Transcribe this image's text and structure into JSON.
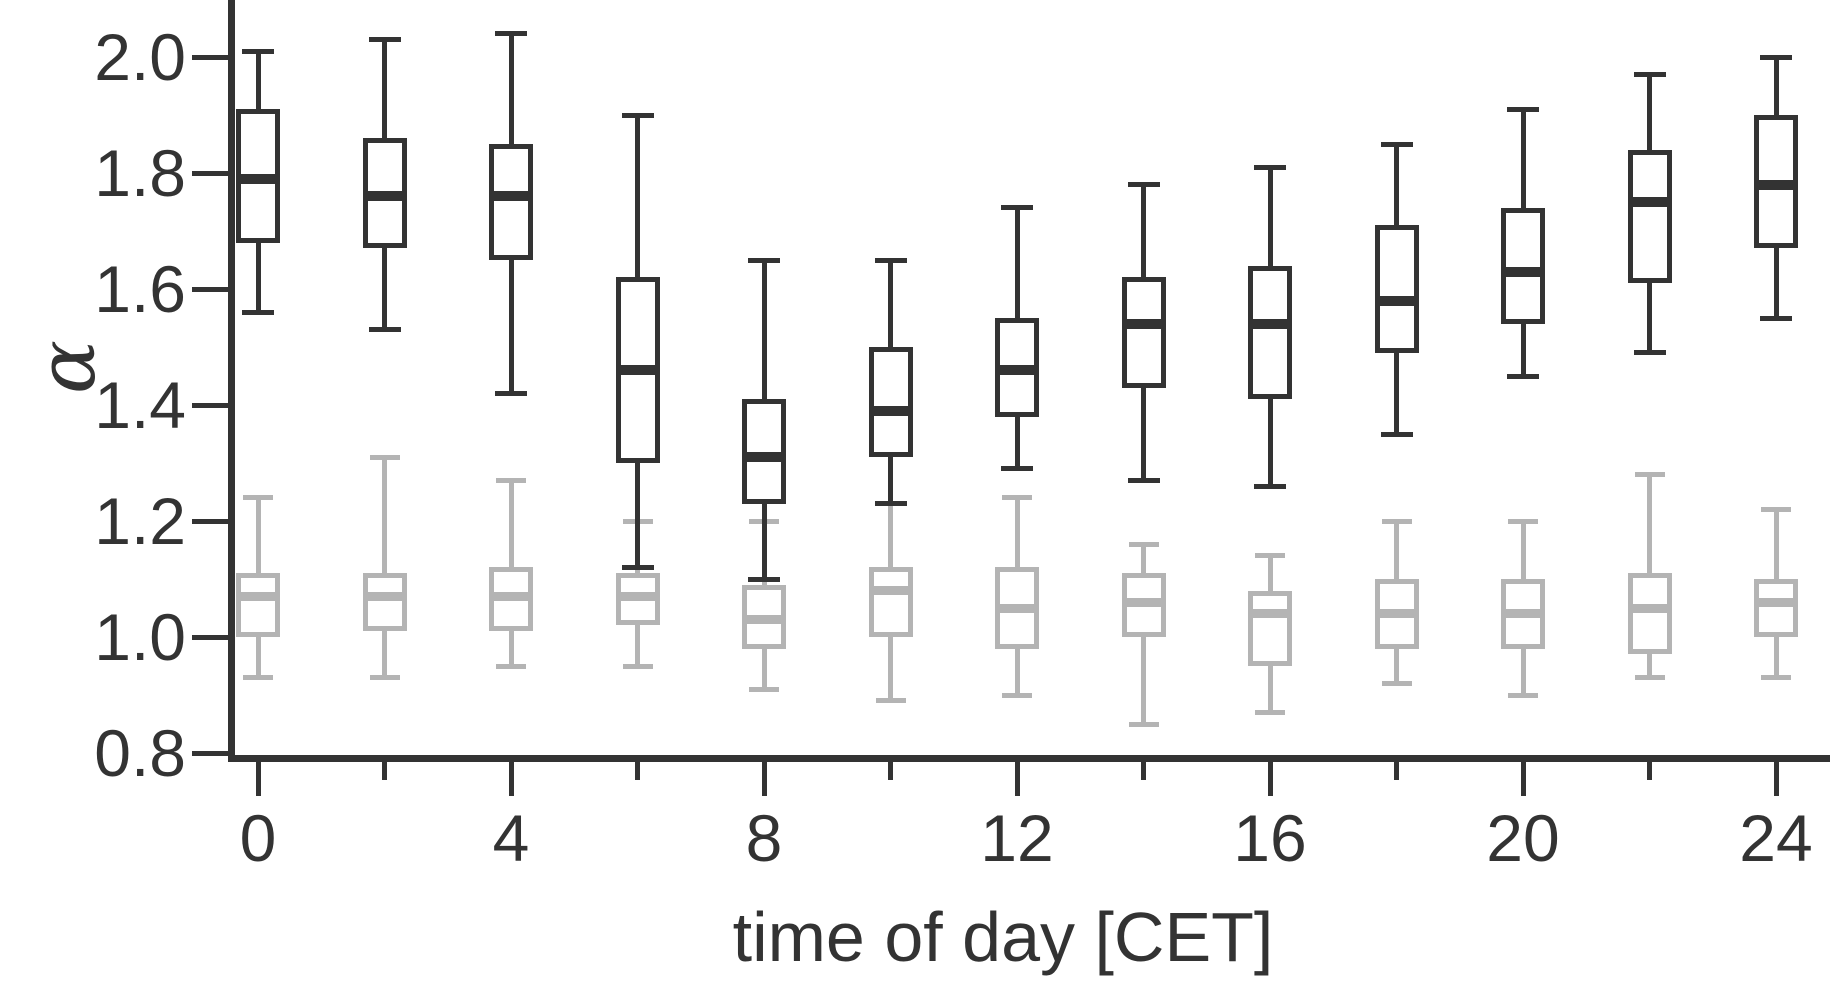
{
  "figure": {
    "xlabel": "time of day [CET]",
    "ylabel": "α"
  },
  "chart_data": {
    "type": "boxplot",
    "title": "",
    "xlabel": "time of day [CET]",
    "ylabel": "α",
    "xlim": [
      -1.2,
      25.2
    ],
    "ylim": [
      0.8,
      2.05
    ],
    "grid": false,
    "legend": "none",
    "axis_color": "#333333",
    "x_ticks": [
      {
        "label": "0",
        "value": 0
      },
      {
        "label": "4",
        "value": 4
      },
      {
        "label": "8",
        "value": 8
      },
      {
        "label": "12",
        "value": 12
      },
      {
        "label": "16",
        "value": 16
      },
      {
        "label": "20",
        "value": 20
      },
      {
        "label": "24",
        "value": 24
      }
    ],
    "x_minor_ticks": [
      2,
      6,
      10,
      14,
      18,
      22
    ],
    "y_ticks": [
      {
        "label": "0.8",
        "value": 0.8
      },
      {
        "label": "1.0",
        "value": 1.0
      },
      {
        "label": "1.2",
        "value": 1.2
      },
      {
        "label": "1.4",
        "value": 1.4
      },
      {
        "label": "1.6",
        "value": 1.6
      },
      {
        "label": "1.8",
        "value": 1.8
      },
      {
        "label": "2.0",
        "value": 2.0
      }
    ],
    "series": [
      {
        "name": "light-gray-series",
        "color": "#b4b4b4",
        "boxes": [
          {
            "x": 0,
            "low": 0.93,
            "q1": 1.0,
            "median": 1.07,
            "q3": 1.11,
            "high": 1.24
          },
          {
            "x": 2,
            "low": 0.93,
            "q1": 1.01,
            "median": 1.07,
            "q3": 1.11,
            "high": 1.31
          },
          {
            "x": 4,
            "low": 0.95,
            "q1": 1.01,
            "median": 1.07,
            "q3": 1.12,
            "high": 1.27
          },
          {
            "x": 6,
            "low": 0.95,
            "q1": 1.02,
            "median": 1.07,
            "q3": 1.11,
            "high": 1.2
          },
          {
            "x": 8,
            "low": 0.91,
            "q1": 0.98,
            "median": 1.03,
            "q3": 1.09,
            "high": 1.2
          },
          {
            "x": 10,
            "low": 0.89,
            "q1": 1.0,
            "median": 1.08,
            "q3": 1.12,
            "high": 1.23
          },
          {
            "x": 12,
            "low": 0.9,
            "q1": 0.98,
            "median": 1.05,
            "q3": 1.12,
            "high": 1.24
          },
          {
            "x": 14,
            "low": 0.85,
            "q1": 1.0,
            "median": 1.06,
            "q3": 1.11,
            "high": 1.16
          },
          {
            "x": 16,
            "low": 0.87,
            "q1": 0.95,
            "median": 1.04,
            "q3": 1.08,
            "high": 1.14
          },
          {
            "x": 18,
            "low": 0.92,
            "q1": 0.98,
            "median": 1.04,
            "q3": 1.1,
            "high": 1.2
          },
          {
            "x": 20,
            "low": 0.9,
            "q1": 0.98,
            "median": 1.04,
            "q3": 1.1,
            "high": 1.2
          },
          {
            "x": 22,
            "low": 0.93,
            "q1": 0.97,
            "median": 1.05,
            "q3": 1.11,
            "high": 1.28
          },
          {
            "x": 24,
            "low": 0.93,
            "q1": 1.0,
            "median": 1.06,
            "q3": 1.1,
            "high": 1.22
          }
        ]
      },
      {
        "name": "dark-series",
        "color": "#333333",
        "boxes": [
          {
            "x": 0,
            "low": 1.56,
            "q1": 1.68,
            "median": 1.79,
            "q3": 1.91,
            "high": 2.01
          },
          {
            "x": 2,
            "low": 1.53,
            "q1": 1.67,
            "median": 1.76,
            "q3": 1.86,
            "high": 2.03
          },
          {
            "x": 4,
            "low": 1.42,
            "q1": 1.65,
            "median": 1.76,
            "q3": 1.85,
            "high": 2.04
          },
          {
            "x": 6,
            "low": 1.12,
            "q1": 1.3,
            "median": 1.46,
            "q3": 1.62,
            "high": 1.9
          },
          {
            "x": 8,
            "low": 1.1,
            "q1": 1.23,
            "median": 1.31,
            "q3": 1.41,
            "high": 1.65
          },
          {
            "x": 10,
            "low": 1.23,
            "q1": 1.31,
            "median": 1.39,
            "q3": 1.5,
            "high": 1.65
          },
          {
            "x": 12,
            "low": 1.29,
            "q1": 1.38,
            "median": 1.46,
            "q3": 1.55,
            "high": 1.74
          },
          {
            "x": 14,
            "low": 1.27,
            "q1": 1.43,
            "median": 1.54,
            "q3": 1.62,
            "high": 1.78
          },
          {
            "x": 16,
            "low": 1.26,
            "q1": 1.41,
            "median": 1.54,
            "q3": 1.64,
            "high": 1.81
          },
          {
            "x": 18,
            "low": 1.35,
            "q1": 1.49,
            "median": 1.58,
            "q3": 1.71,
            "high": 1.85
          },
          {
            "x": 20,
            "low": 1.45,
            "q1": 1.54,
            "median": 1.63,
            "q3": 1.74,
            "high": 1.91
          },
          {
            "x": 22,
            "low": 1.49,
            "q1": 1.61,
            "median": 1.75,
            "q3": 1.84,
            "high": 1.97
          },
          {
            "x": 24,
            "low": 1.55,
            "q1": 1.67,
            "median": 1.78,
            "q3": 1.9,
            "high": 2.0
          }
        ]
      }
    ]
  }
}
